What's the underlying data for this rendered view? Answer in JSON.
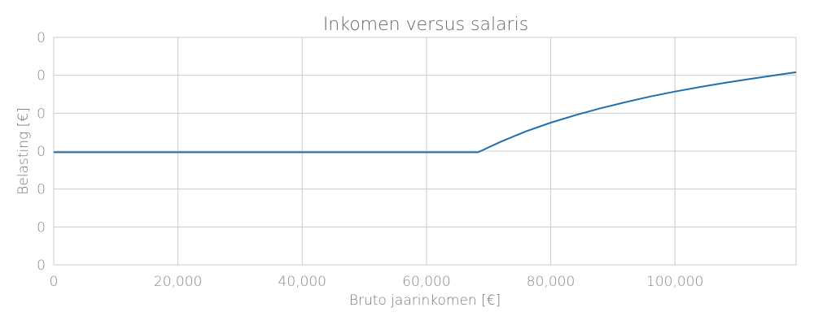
{
  "chart_data": {
    "type": "line",
    "title": "Inkomen versus salaris",
    "xlabel": "Bruto jaarinkomen [€]",
    "ylabel": "Belasting [€]",
    "xlim": [
      0,
      119500
    ],
    "ylim": [
      0,
      6
    ],
    "x_ticks": [
      "0",
      "20,000",
      "40,000",
      "60,000",
      "80,000",
      "100,000"
    ],
    "x_tick_values": [
      0,
      20000,
      40000,
      60000,
      80000,
      100000
    ],
    "y_ticks": [
      "0",
      "0",
      "0",
      "0",
      "0",
      "0",
      "0"
    ],
    "y_tick_values": [
      0,
      1,
      2,
      3,
      4,
      5,
      6
    ],
    "grid": true,
    "legend": "none",
    "series_color": "#1f6fae",
    "series": [
      {
        "x": [
          0,
          68300,
          72000,
          76000,
          80000,
          84000,
          88000,
          92000,
          96000,
          100000,
          104000,
          108000,
          112000,
          116000,
          119500
        ],
        "values": [
          2.97,
          2.97,
          3.25,
          3.52,
          3.75,
          3.95,
          4.13,
          4.29,
          4.44,
          4.57,
          4.69,
          4.8,
          4.9,
          5.0,
          5.08
        ]
      }
    ]
  }
}
